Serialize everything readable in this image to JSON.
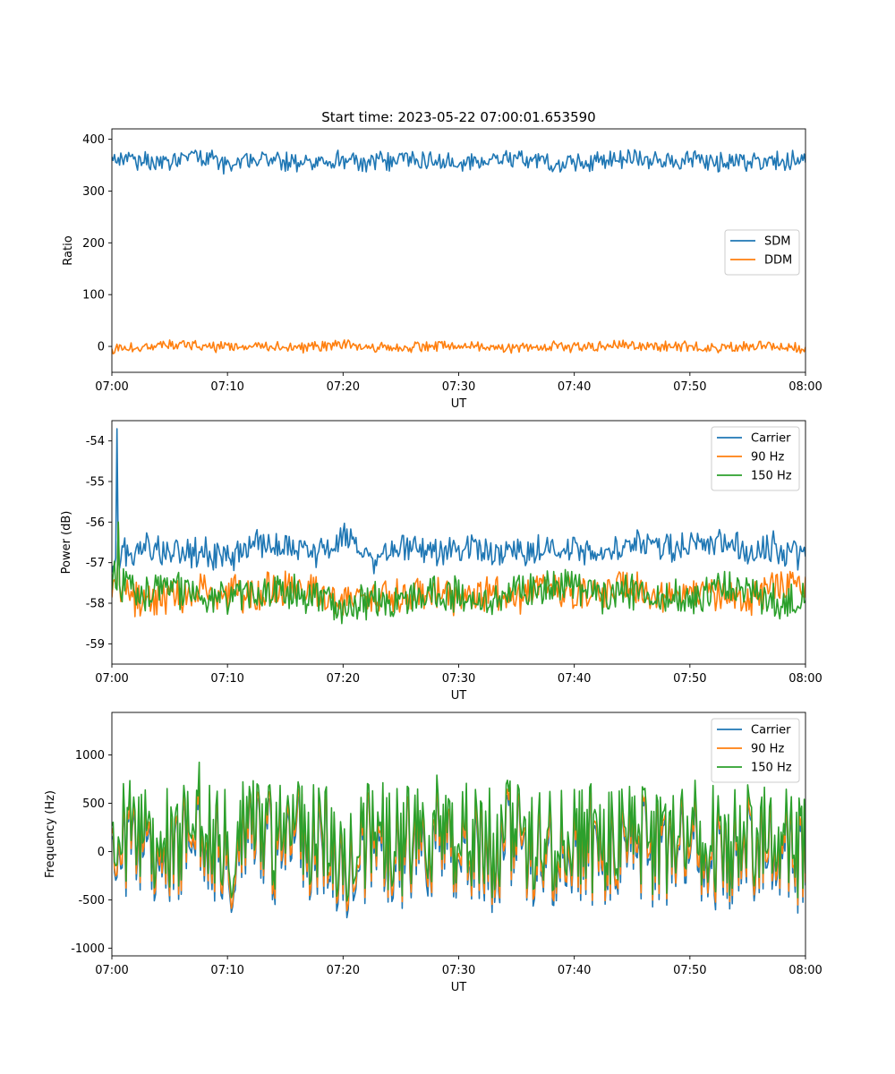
{
  "figure_title": "Start time: 2023-05-22 07:00:01.653590",
  "colors": {
    "blue": "#1f77b4",
    "orange": "#ff7f0e",
    "green": "#2ca02c"
  },
  "chart_data": [
    {
      "type": "line",
      "title": "Start time: 2023-05-22 07:00:01.653590",
      "xlabel": "UT",
      "ylabel": "Ratio",
      "xlim": [
        "07:00",
        "08:00"
      ],
      "ylim": [
        -50,
        420
      ],
      "xticks": [
        "07:00",
        "07:10",
        "07:20",
        "07:30",
        "07:40",
        "07:50",
        "08:00"
      ],
      "yticks": [
        0,
        100,
        200,
        300,
        400
      ],
      "legend_position": "center-right",
      "x_minutes": [
        0,
        2.5,
        5,
        7.5,
        10,
        12.5,
        15,
        17.5,
        20,
        22.5,
        25,
        27.5,
        30,
        32.5,
        35,
        37.5,
        40,
        42.5,
        45,
        47.5,
        50,
        52.5,
        55,
        57.5,
        60
      ],
      "series": [
        {
          "name": "SDM",
          "color": "#1f77b4",
          "values": [
            360,
            358,
            356,
            365,
            352,
            360,
            357,
            359,
            362,
            355,
            358,
            361,
            356,
            360,
            362,
            357,
            354,
            359,
            363,
            357,
            361,
            355,
            358,
            356,
            360
          ],
          "min": 310,
          "max": 396
        },
        {
          "name": "DDM",
          "color": "#ff7f0e",
          "values": [
            -5,
            0,
            3,
            0,
            -2,
            1,
            0,
            -3,
            2,
            0,
            -4,
            3,
            0,
            1,
            -2,
            0,
            -3,
            1,
            0,
            -2,
            1,
            -4,
            2,
            0,
            -3
          ],
          "min": -30,
          "max": 22
        }
      ]
    },
    {
      "type": "line",
      "xlabel": "UT",
      "ylabel": "Power (dB)",
      "xlim": [
        "07:00",
        "08:00"
      ],
      "ylim": [
        -59.5,
        -53.5
      ],
      "xticks": [
        "07:00",
        "07:10",
        "07:20",
        "07:30",
        "07:40",
        "07:50",
        "08:00"
      ],
      "yticks": [
        -54,
        -55,
        -56,
        -57,
        -58,
        -59
      ],
      "legend_position": "upper-right",
      "x_minutes": [
        0,
        2.5,
        5,
        7.5,
        10,
        12.5,
        15,
        17.5,
        20,
        22.5,
        25,
        27.5,
        30,
        32.5,
        35,
        37.5,
        40,
        42.5,
        45,
        47.5,
        50,
        52.5,
        55,
        57.5,
        60
      ],
      "series": [
        {
          "name": "Carrier",
          "color": "#1f77b4",
          "values": [
            -56.9,
            -56.6,
            -56.8,
            -56.7,
            -56.9,
            -56.5,
            -56.6,
            -56.8,
            -56.4,
            -56.9,
            -56.6,
            -56.8,
            -56.7,
            -56.7,
            -56.8,
            -56.7,
            -56.6,
            -56.8,
            -56.5,
            -56.7,
            -56.6,
            -56.5,
            -56.7,
            -56.6,
            -56.9
          ],
          "min": -57.6,
          "max": -53.7
        },
        {
          "name": "90 Hz",
          "color": "#ff7f0e",
          "values": [
            -57.6,
            -57.9,
            -57.8,
            -57.7,
            -57.8,
            -57.7,
            -57.6,
            -57.7,
            -58.0,
            -57.8,
            -57.8,
            -57.7,
            -57.9,
            -57.8,
            -57.9,
            -57.6,
            -57.7,
            -57.7,
            -57.6,
            -57.8,
            -57.7,
            -57.7,
            -57.9,
            -57.6,
            -57.6
          ],
          "min": -59.2,
          "max": -56.0
        },
        {
          "name": "150 Hz",
          "color": "#2ca02c",
          "values": [
            -57.3,
            -57.8,
            -57.6,
            -57.8,
            -57.9,
            -57.8,
            -57.7,
            -57.9,
            -58.1,
            -57.9,
            -58.0,
            -57.7,
            -57.8,
            -58.0,
            -57.7,
            -57.6,
            -57.5,
            -57.8,
            -57.7,
            -57.8,
            -57.9,
            -57.6,
            -57.7,
            -58.0,
            -57.9
          ],
          "min": -59.1,
          "max": -56.0
        }
      ]
    },
    {
      "type": "line",
      "xlabel": "UT",
      "ylabel": "Frequency (Hz)",
      "xlim": [
        "07:00",
        "08:00"
      ],
      "ylim": [
        -1080,
        1440
      ],
      "xticks": [
        "07:00",
        "07:10",
        "07:20",
        "07:30",
        "07:40",
        "07:50",
        "08:00"
      ],
      "yticks": [
        -1000,
        -500,
        0,
        500,
        1000
      ],
      "legend_position": "upper-right",
      "x_minutes": [
        0,
        2.5,
        5,
        7.5,
        10,
        12.5,
        15,
        17.5,
        20,
        22.5,
        25,
        27.5,
        30,
        32.5,
        35,
        37.5,
        40,
        42.5,
        45,
        47.5,
        50,
        52.5,
        55,
        57.5,
        60
      ],
      "series": [
        {
          "name": "Carrier",
          "color": "#1f77b4",
          "values": [
            -100,
            150,
            -50,
            250,
            -100,
            120,
            -20,
            80,
            -150,
            60,
            -40,
            100,
            30,
            -80,
            110,
            -60,
            20,
            -30,
            90,
            -70,
            140,
            -90,
            60,
            -40,
            -80
          ],
          "min": -970,
          "max": 1200
        },
        {
          "name": "90 Hz",
          "color": "#ff7f0e",
          "values": [
            -40,
            210,
            10,
            310,
            -40,
            180,
            40,
            140,
            -90,
            120,
            20,
            160,
            90,
            -20,
            170,
            0,
            80,
            30,
            150,
            -10,
            200,
            -30,
            120,
            20,
            -20
          ],
          "min": -900,
          "max": 1230
        },
        {
          "name": "150 Hz",
          "color": "#2ca02c",
          "values": [
            40,
            300,
            100,
            400,
            50,
            270,
            130,
            230,
            0,
            210,
            110,
            250,
            180,
            70,
            260,
            90,
            170,
            120,
            240,
            80,
            290,
            60,
            210,
            110,
            70
          ],
          "min": -880,
          "max": 1250
        }
      ]
    }
  ]
}
